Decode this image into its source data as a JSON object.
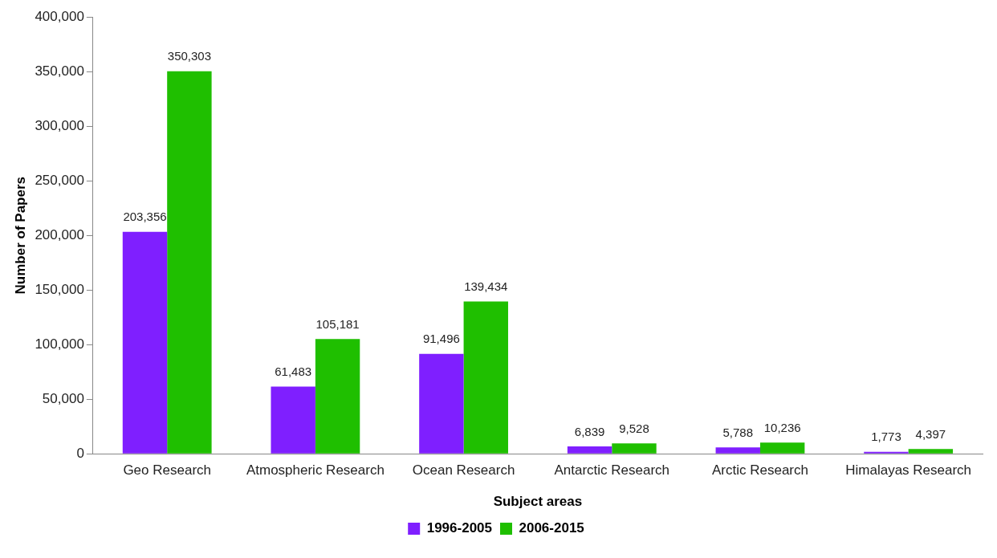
{
  "chart_data": {
    "type": "bar",
    "xlabel": "Subject areas",
    "ylabel": "Number of Papers",
    "categories": [
      "Geo Research",
      "Atmospheric Research",
      "Ocean Research",
      "Antarctic Research",
      "Arctic Research",
      "Himalayas Research"
    ],
    "series": [
      {
        "name": "1996-2005",
        "color": "#7f1fff",
        "values": [
          203356,
          61483,
          91496,
          6839,
          5788,
          1773
        ],
        "value_labels": [
          "203,356",
          "61,483",
          "91,496",
          "6,839",
          "5,788",
          "1,773"
        ]
      },
      {
        "name": "2006-2015",
        "color": "#1fbf00",
        "values": [
          350303,
          105181,
          139434,
          9528,
          10236,
          4397
        ],
        "value_labels": [
          "350,303",
          "105,181",
          "139,434",
          "9,528",
          "10,236",
          "4,397"
        ]
      }
    ],
    "ylim": [
      0,
      400000
    ],
    "yticks": [
      {
        "value": 0,
        "label": "0"
      },
      {
        "value": 50000,
        "label": "50,000"
      },
      {
        "value": 100000,
        "label": "100,000"
      },
      {
        "value": 150000,
        "label": "150,000"
      },
      {
        "value": 200000,
        "label": "200,000"
      },
      {
        "value": 250000,
        "label": "250,000"
      },
      {
        "value": 300000,
        "label": "300,000"
      },
      {
        "value": 350000,
        "label": "350,000"
      },
      {
        "value": 400000,
        "label": "400,000"
      }
    ],
    "grid": false,
    "legend": "bottom"
  }
}
